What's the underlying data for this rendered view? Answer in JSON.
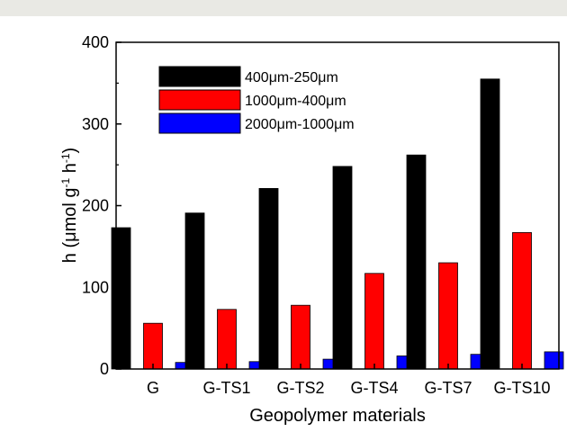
{
  "chart_data": {
    "type": "bar",
    "title": "",
    "xlabel": "Geopolymer materials",
    "ylabel_parts": [
      "h (μmol g",
      "-1",
      " h",
      "-1",
      ")"
    ],
    "ylim": [
      0,
      400
    ],
    "yticks": [
      "0",
      "100",
      "200",
      "300",
      "400"
    ],
    "categories": [
      "G",
      "G-TS1",
      "G-TS2",
      "G-TS4",
      "G-TS7",
      "G-TS10"
    ],
    "series": [
      {
        "name": "400μm-250μm",
        "color": "#000000",
        "values": [
          173,
          191,
          221,
          248,
          262,
          355
        ]
      },
      {
        "name": "1000μm-400μm",
        "color": "#ff0000",
        "values": [
          56,
          73,
          78,
          117,
          130,
          167
        ]
      },
      {
        "name": "2000μm-1000μm",
        "color": "#0000ff",
        "values": [
          8,
          9,
          12,
          16,
          18,
          21
        ]
      }
    ],
    "legend_position": "top-left",
    "grid": false
  }
}
